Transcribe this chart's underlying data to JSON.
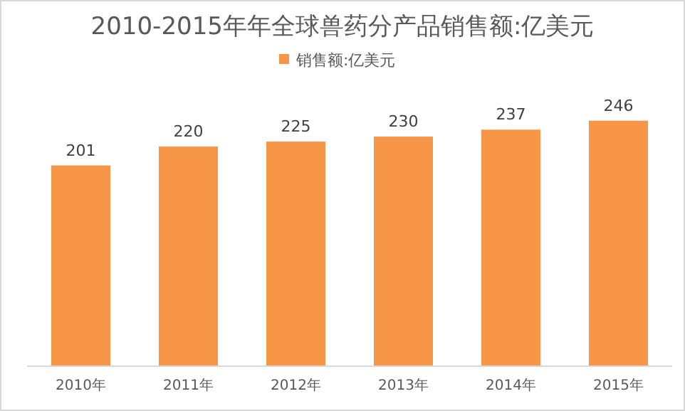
{
  "chart_data": {
    "type": "bar",
    "title": "2010-2015年年全球兽药分产品销售额:亿美元",
    "categories": [
      "2010年",
      "2011年",
      "2012年",
      "2013年",
      "2014年",
      "2015年"
    ],
    "series": [
      {
        "name": "销售额:亿美元",
        "color": "#f79646",
        "values": [
          201,
          220,
          225,
          230,
          237,
          246
        ]
      }
    ],
    "data_labels": true,
    "legend": "top"
  }
}
